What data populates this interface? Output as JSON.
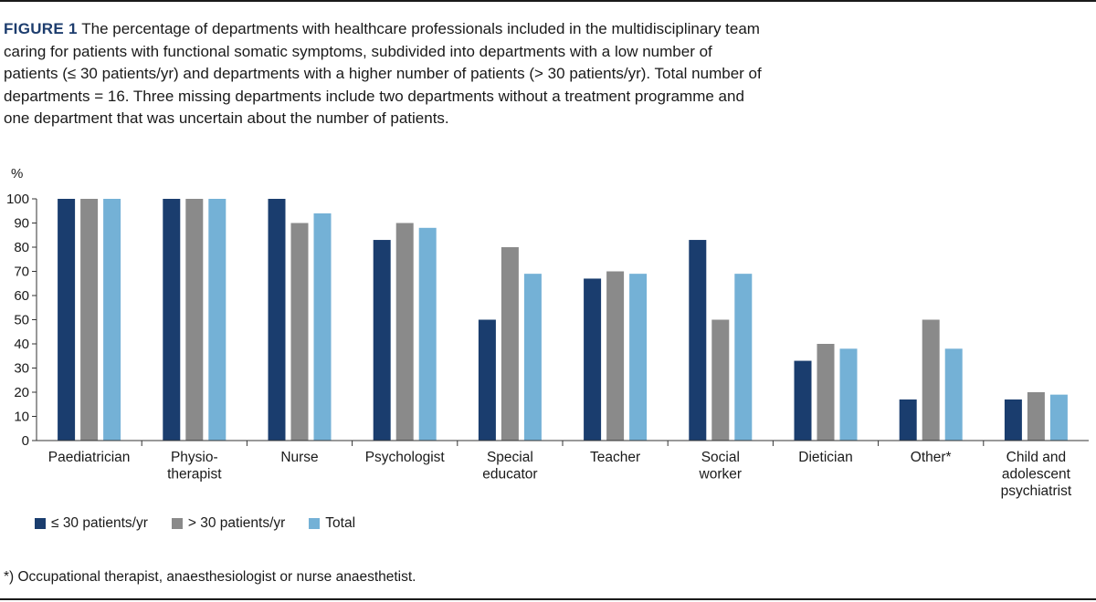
{
  "figure": {
    "label": "FIGURE 1",
    "caption": "The percentage of departments with healthcare professionals included in the multidisciplinary team caring for patients with functional somatic symptoms, subdivided into departments with a low number of patients (≤ 30 patients/yr) and departments with a higher number of patients (> 30 patients/yr). Total number of departments = 16. Three missing departments include two departments without a treatment programme and one department that was uncertain about the number of patients."
  },
  "footnote": "*) Occupational therapist, anaesthesiologist or nurse anaesthetist.",
  "colors": {
    "low": "#1a3d6e",
    "high": "#8a8a8a",
    "total": "#74b1d6",
    "axis": "#333333"
  },
  "chart_data": {
    "type": "bar",
    "ylabel": "%",
    "ylim": [
      0,
      100
    ],
    "yticks": [
      0,
      10,
      20,
      30,
      40,
      50,
      60,
      70,
      80,
      90,
      100
    ],
    "grid": false,
    "legend_position": "bottom-left",
    "categories": [
      [
        "Paediatrician"
      ],
      [
        "Physio-",
        "therapist"
      ],
      [
        "Nurse"
      ],
      [
        "Psychologist"
      ],
      [
        "Special",
        "educator"
      ],
      [
        "Teacher"
      ],
      [
        "Social",
        "worker"
      ],
      [
        "Dietician"
      ],
      [
        "Other*"
      ],
      [
        "Child and",
        "adolescent",
        "psychiatrist"
      ]
    ],
    "series": [
      {
        "name": "≤ 30 patients/yr",
        "values": [
          100,
          100,
          100,
          83,
          50,
          67,
          83,
          33,
          17,
          17
        ]
      },
      {
        "name": "> 30 patients/yr",
        "values": [
          100,
          100,
          90,
          90,
          80,
          70,
          50,
          40,
          50,
          20
        ]
      },
      {
        "name": "Total",
        "values": [
          100,
          100,
          94,
          88,
          69,
          69,
          69,
          38,
          38,
          19
        ]
      }
    ]
  }
}
